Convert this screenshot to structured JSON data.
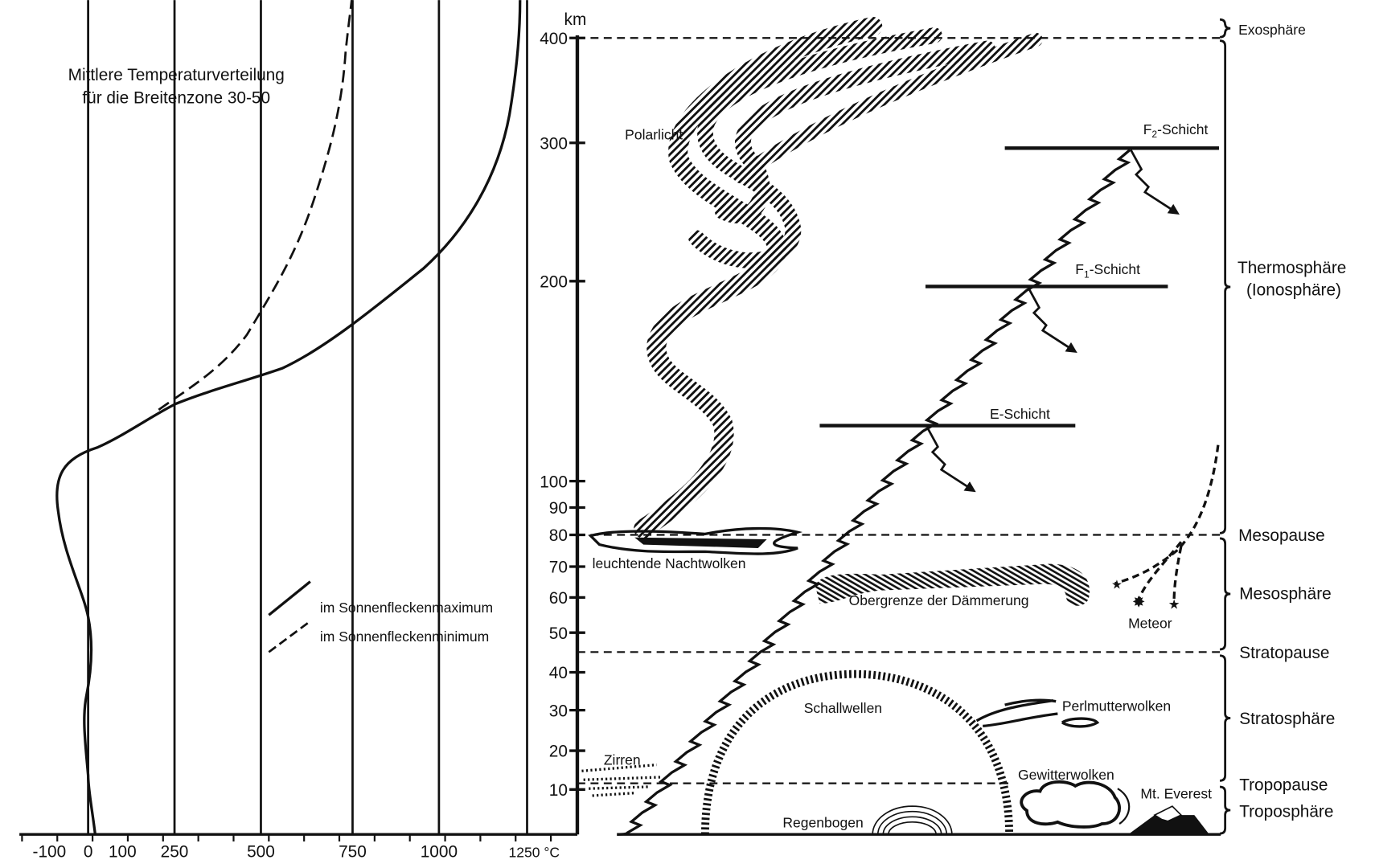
{
  "temperature_panel": {
    "title_line1": "Mittlere Temperaturverteilung",
    "title_line2": "für die Breitenzone 30-50",
    "ticks": [
      "-100",
      "0",
      "100",
      "250",
      "500",
      "750",
      "1000",
      "1250 °C"
    ],
    "legend": [
      {
        "style": "solid",
        "label": "im Sonnenfleckenmaximum"
      },
      {
        "style": "dashed",
        "label": "im Sonnenfleckenminimum"
      }
    ]
  },
  "altitude_axis": {
    "unit": "km",
    "ticks": [
      "400",
      "300",
      "200",
      "100",
      "90",
      "80",
      "70",
      "60",
      "50",
      "40",
      "30",
      "20",
      "10"
    ]
  },
  "layers": {
    "exosphere": "Exosphäre",
    "thermosphere": "Thermosphäre",
    "ionosphere": "(Ionosphäre)",
    "mesopause": "Mesopause",
    "mesosphere": "Mesosphäre",
    "stratopause": "Stratopause",
    "stratosphere": "Stratosphäre",
    "tropopause": "Tropopause",
    "troposphere": "Troposphäre"
  },
  "ionosphere_layers": {
    "f2": {
      "name": "F",
      "sub": "2",
      "suffix": "-Schicht"
    },
    "f1": {
      "name": "F",
      "sub": "1",
      "suffix": "-Schicht"
    },
    "e": {
      "name": "E-Schicht"
    }
  },
  "phenomena": {
    "aurora": "Polarlicht",
    "noctilucent": "leuchtende Nachtwolken",
    "twilight": "Obergrenze der Dämmerung",
    "meteor": "Meteor",
    "sound": "Schallwellen",
    "nacreous": "Perlmutterwolken",
    "cirrus": "Zirren",
    "thunderclouds": "Gewitterwolken",
    "everest": "Mt. Everest",
    "rainbow": "Regenbogen"
  }
}
